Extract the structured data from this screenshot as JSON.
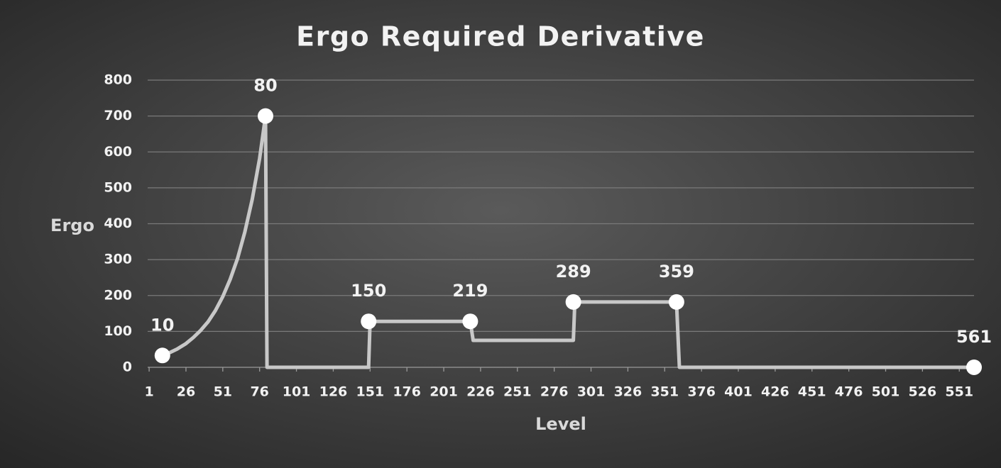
{
  "chart_data": {
    "type": "line",
    "title": "Ergo Required Derivative",
    "x_label": "Level",
    "y_label": "Ergo",
    "xlim": [
      0,
      561
    ],
    "xticks": [
      1,
      26,
      51,
      76,
      101,
      126,
      151,
      176,
      201,
      226,
      251,
      276,
      301,
      326,
      351,
      376,
      401,
      426,
      451,
      476,
      501,
      526,
      551
    ],
    "ylim": [
      0,
      800
    ],
    "yticks": [
      0,
      100,
      200,
      300,
      400,
      500,
      600,
      700,
      800
    ],
    "grid": true,
    "series": [
      {
        "color": "#c8c8c8",
        "x": [
          10,
          15,
          20,
          26,
          31,
          36,
          41,
          46,
          51,
          56,
          61,
          66,
          71,
          76,
          80,
          81,
          150,
          151,
          219,
          221,
          289,
          290,
          359,
          361,
          561
        ],
        "values": [
          33,
          41,
          51,
          66,
          83,
          103,
          127,
          158,
          197,
          245,
          303,
          377,
          468,
          582,
          700,
          0,
          0,
          128,
          128,
          75,
          75,
          182,
          182,
          0,
          0
        ]
      }
    ],
    "labeled_points": {
      "color": "#ffffff",
      "x": [
        10,
        80,
        150,
        219,
        289,
        359,
        561
      ],
      "values": [
        33,
        700,
        128,
        128,
        182,
        182,
        0
      ]
    }
  }
}
